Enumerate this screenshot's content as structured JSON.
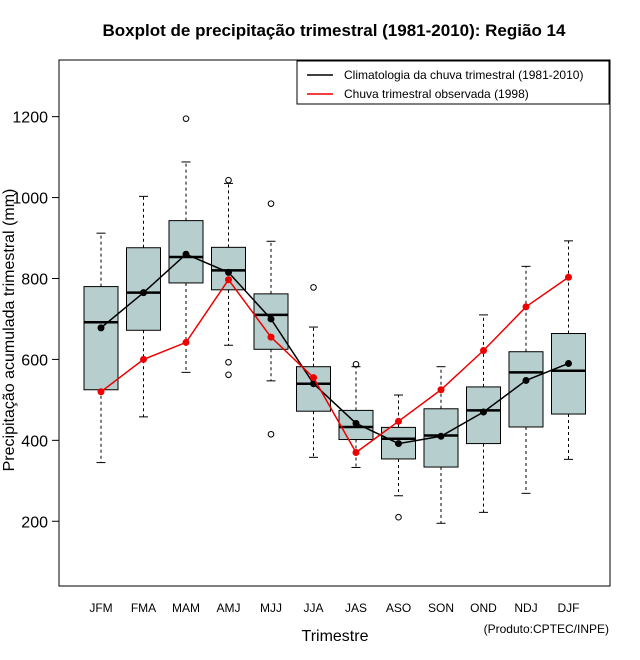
{
  "chart_data": {
    "type": "boxplot",
    "title": "Boxplot de precipitação trimestral (1981-2010): Região 14",
    "xlabel": "Trimestre",
    "ylabel": "Precipitação acumulada trimestral (mm)",
    "credit": "(Produto:CPTEC/INPE)",
    "ylim": [
      40,
      1340
    ],
    "yticks": [
      200,
      400,
      600,
      800,
      1000,
      1200
    ],
    "categories": [
      "JFM",
      "FMA",
      "MAM",
      "AMJ",
      "MJJ",
      "JJA",
      "JAS",
      "ASO",
      "SON",
      "OND",
      "NDJ",
      "DJF"
    ],
    "boxes": [
      {
        "whisker_low": 345,
        "q1": 525,
        "median": 692,
        "q3": 780,
        "whisker_high": 912,
        "outliers": []
      },
      {
        "whisker_low": 458,
        "q1": 672,
        "median": 765,
        "q3": 876,
        "whisker_high": 1003,
        "outliers": []
      },
      {
        "whisker_low": 568,
        "q1": 789,
        "median": 853,
        "q3": 943,
        "whisker_high": 1088,
        "outliers": [
          1195
        ]
      },
      {
        "whisker_low": 635,
        "q1": 772,
        "median": 820,
        "q3": 877,
        "whisker_high": 1035,
        "outliers": [
          1043,
          593,
          562
        ]
      },
      {
        "whisker_low": 547,
        "q1": 625,
        "median": 710,
        "q3": 762,
        "whisker_high": 892,
        "outliers": [
          985,
          415
        ]
      },
      {
        "whisker_low": 358,
        "q1": 472,
        "median": 540,
        "q3": 582,
        "whisker_high": 680,
        "outliers": [
          778
        ]
      },
      {
        "whisker_low": 333,
        "q1": 402,
        "median": 433,
        "q3": 474,
        "whisker_high": 582,
        "outliers": [
          588
        ]
      },
      {
        "whisker_low": 263,
        "q1": 354,
        "median": 404,
        "q3": 432,
        "whisker_high": 512,
        "outliers": [
          210
        ]
      },
      {
        "whisker_low": 195,
        "q1": 334,
        "median": 412,
        "q3": 478,
        "whisker_high": 582,
        "outliers": []
      },
      {
        "whisker_low": 222,
        "q1": 392,
        "median": 474,
        "q3": 532,
        "whisker_high": 710,
        "outliers": []
      },
      {
        "whisker_low": 269,
        "q1": 433,
        "median": 568,
        "q3": 619,
        "whisker_high": 830,
        "outliers": []
      },
      {
        "whisker_low": 353,
        "q1": 465,
        "median": 572,
        "q3": 664,
        "whisker_high": 893,
        "outliers": []
      }
    ],
    "series": [
      {
        "name": "Climatologia da chuva trimestral (1981-2010)",
        "color": "#000000",
        "values": [
          678,
          765,
          860,
          815,
          700,
          540,
          442,
          392,
          410,
          470,
          548,
          590
        ]
      },
      {
        "name": "Chuva trimestral observada (1998)",
        "color": "#ee0000",
        "values": [
          520,
          600,
          642,
          797,
          655,
          555,
          370,
          447,
          525,
          622,
          730,
          803
        ]
      }
    ],
    "legend_position": "top-right",
    "box_color": "#b7cece",
    "grid": false
  }
}
